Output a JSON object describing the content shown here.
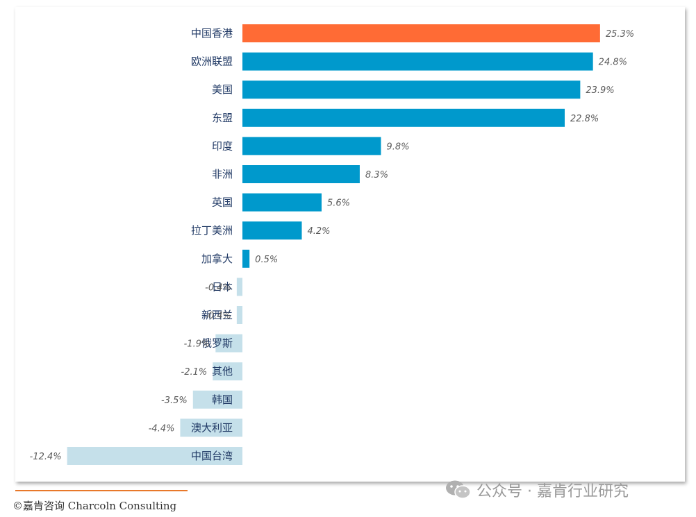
{
  "chart_data": {
    "type": "bar",
    "orientation": "horizontal",
    "categories": [
      "中国香港",
      "欧洲联盟",
      "美国",
      "东盟",
      "印度",
      "非洲",
      "英国",
      "拉丁美洲",
      "加拿大",
      "日本",
      "新西兰",
      "俄罗斯",
      "其他",
      "韩国",
      "澳大利亚",
      "中国台湾"
    ],
    "values": [
      25.3,
      24.8,
      23.9,
      22.8,
      9.8,
      8.3,
      5.6,
      4.2,
      0.5,
      -0.4,
      -0.4,
      -1.9,
      -2.1,
      -3.5,
      -4.4,
      -12.4
    ],
    "value_labels": [
      "25.3%",
      "24.8%",
      "23.9%",
      "22.8%",
      "9.8%",
      "8.3%",
      "5.6%",
      "4.2%",
      "0.5%",
      "-0.4%",
      "-0.4%",
      "-1.9%",
      "-2.1%",
      "-3.5%",
      "-4.4%",
      "-12.4%"
    ],
    "colors": {
      "highlight": "#ff6b35",
      "positive": "#0099cc",
      "negative": "#c5e0ea",
      "label_text": "#1f3864",
      "value_text": "#595959"
    },
    "highlight_index": 0,
    "xlim": [
      -12.4,
      25.3
    ],
    "grid": false,
    "legend": "none"
  },
  "footer": {
    "credit": "©嘉肯咨询  Charcoln Consulting",
    "watermark": "公众号 · 嘉肯行业研究"
  }
}
